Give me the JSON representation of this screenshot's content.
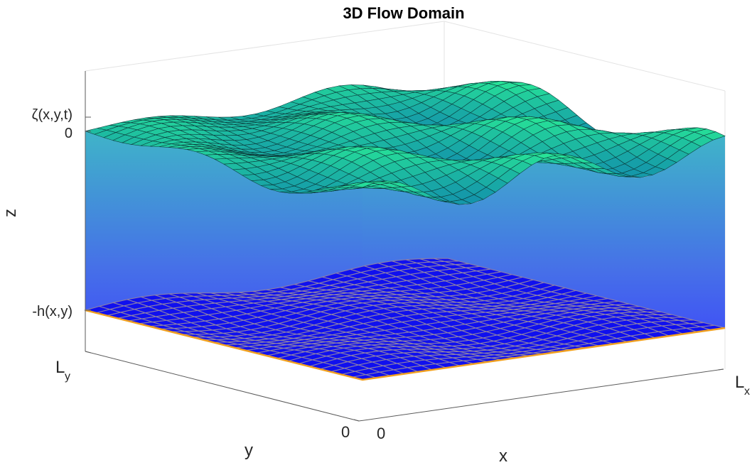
{
  "title": "3D Flow Domain",
  "axes": {
    "x_label": "x",
    "y_label": "y",
    "z_label": "z",
    "x_ticks": [
      "0",
      "L",
      "x"
    ],
    "y_ticks": [
      "0",
      "L",
      "y"
    ],
    "z_ticks": [
      "ζ(x,y,t)",
      "0",
      "-h(x,y)"
    ]
  },
  "colors": {
    "surface_top": "#1fd6a8",
    "surface_mid": "#1aa8b8",
    "water_upper": "#3fb4c8",
    "water_lower": "#3b3cff",
    "bottom_fill": "#1010ee",
    "bottom_mesh": "#8a7fa8",
    "bottom_edge": "#f0a020",
    "surface_mesh": "#0b3b3b",
    "axis": "#5a5a5a",
    "grid": "#e3e3e3"
  }
}
